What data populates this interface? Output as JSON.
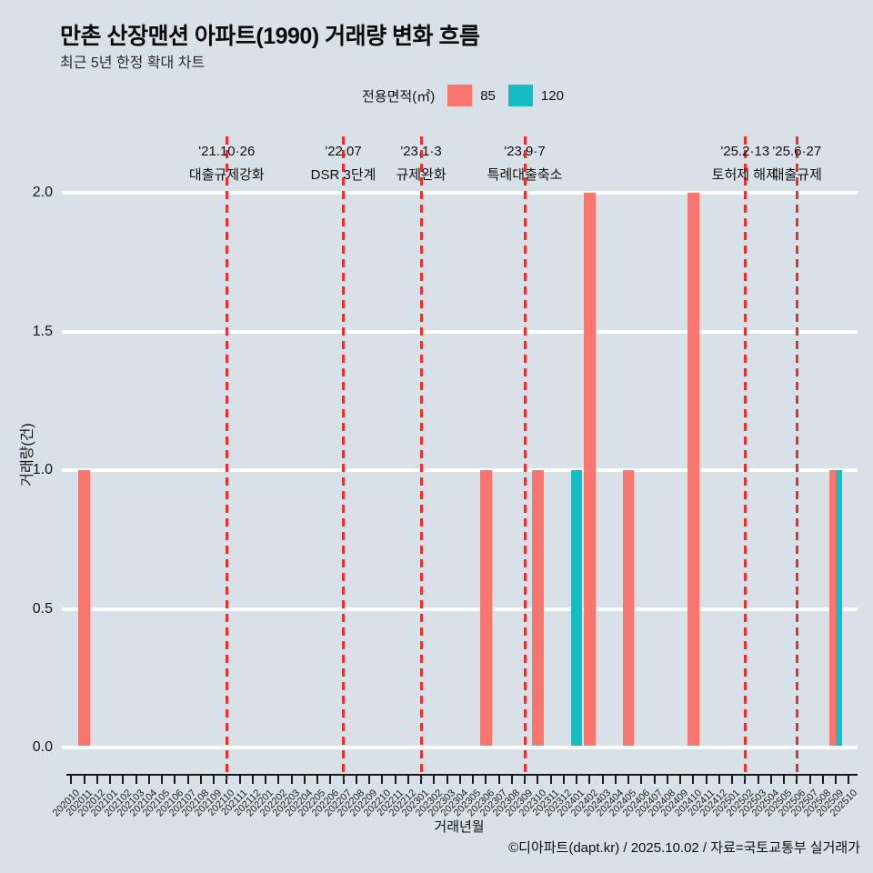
{
  "header": {
    "title": "만촌 산장맨션 아파트(1990) 거래량 변화 흐름",
    "subtitle": "최근 5년 한정 확대 차트"
  },
  "legend": {
    "label": "전용면적(㎡)",
    "items": [
      {
        "name": "85",
        "color": "#f8766d"
      },
      {
        "name": "120",
        "color": "#14bdc4"
      }
    ]
  },
  "footer": {
    "credit": "©디아파트(dapt.kr) / 2025.10.02 / 자료=국토교통부 실거래가"
  },
  "chart_data": {
    "type": "bar",
    "title": "만촌 산장맨션 아파트(1990) 거래량 변화 흐름",
    "subtitle": "최근 5년 한정 확대 차트",
    "xlabel": "거래년월",
    "ylabel": "거래량(건)",
    "ylim": [
      0,
      2
    ],
    "yticks": [
      0.0,
      0.5,
      1.0,
      1.5,
      2.0
    ],
    "grid": true,
    "legend_position": "top",
    "background_color": "#d8e1e7",
    "gridline_color": "#ffffff",
    "event_line_color": "#e53130",
    "categories": [
      "202010",
      "202011",
      "202012",
      "202101",
      "202102",
      "202103",
      "202104",
      "202105",
      "202106",
      "202107",
      "202108",
      "202109",
      "202110",
      "202111",
      "202112",
      "202201",
      "202202",
      "202203",
      "202204",
      "202205",
      "202206",
      "202207",
      "202208",
      "202209",
      "202210",
      "202211",
      "202212",
      "202301",
      "202302",
      "202303",
      "202304",
      "202305",
      "202306",
      "202307",
      "202308",
      "202309",
      "202310",
      "202311",
      "202312",
      "202401",
      "202402",
      "202403",
      "202404",
      "202405",
      "202406",
      "202407",
      "202408",
      "202409",
      "202410",
      "202411",
      "202412",
      "202501",
      "202502",
      "202503",
      "202504",
      "202505",
      "202506",
      "202507",
      "202508",
      "202509",
      "202510"
    ],
    "series": [
      {
        "name": "85",
        "color": "#f8766d",
        "points": [
          {
            "month": "202011",
            "value": 1
          },
          {
            "month": "202306",
            "value": 1
          },
          {
            "month": "202310",
            "value": 1
          },
          {
            "month": "202402",
            "value": 2
          },
          {
            "month": "202405",
            "value": 1
          },
          {
            "month": "202410",
            "value": 2
          },
          {
            "month": "202509",
            "value": 1
          }
        ]
      },
      {
        "name": "120",
        "color": "#14bdc4",
        "points": [
          {
            "month": "202401",
            "value": 1
          },
          {
            "month": "202509",
            "value": 1
          }
        ]
      }
    ],
    "events": [
      {
        "date": "'21.10·26",
        "label": "대출규제강화",
        "month": "202110"
      },
      {
        "date": "'22.07",
        "label": "DSR 3단계",
        "month": "202207"
      },
      {
        "date": "'23.1·3",
        "label": "규제완화",
        "month": "202301"
      },
      {
        "date": "'23.9·7",
        "label": "특례대출축소",
        "month": "202309"
      },
      {
        "date": "'25.2·13",
        "label": "토허제 해제",
        "month": "202502"
      },
      {
        "date": "'25.6·27",
        "label": "대출규제",
        "month": "202506"
      }
    ]
  }
}
